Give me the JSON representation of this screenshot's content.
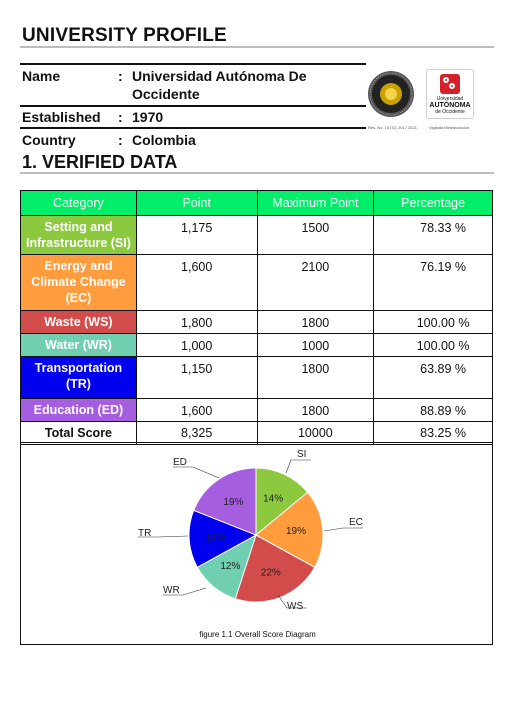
{
  "header": {
    "title": "UNIVERSITY PROFILE"
  },
  "profile": {
    "name_label": "Name",
    "name_value_line1": "Universidad Autónoma De",
    "name_value_line2": "Occidente",
    "established_label": "Established",
    "established_value": "1970",
    "country_label": "Country",
    "country_value": "Colombia",
    "colon": ":"
  },
  "logos": {
    "seal_caption": "Res. No. 16743, 2017 2021",
    "logo_line1": "Universidad",
    "logo_line2": "AUTÓNOMA",
    "logo_line3": "de Occidente",
    "logo_caption": "Vigilada Mineducación"
  },
  "section": {
    "title": "1. VERIFIED DATA"
  },
  "table": {
    "headers": [
      "Category",
      "Point",
      "Maximum Point",
      "Percentage"
    ],
    "header_color": "#00ee6a",
    "rows": [
      {
        "category": "Setting and Infrastructure (SI)",
        "point": "1,175",
        "max": "1500",
        "pct": "78.33 %",
        "color": "#8cc93e"
      },
      {
        "category": "Energy and Climate Change (EC)",
        "point": "1,600",
        "max": "2100",
        "pct": "76.19 %",
        "color": "#ff9c3d"
      },
      {
        "category": "Waste (WS)",
        "point": "1,800",
        "max": "1800",
        "pct": "100.00 %",
        "color": "#d24c4b"
      },
      {
        "category": "Water (WR)",
        "point": "1,000",
        "max": "1000",
        "pct": "100.00 %",
        "color": "#6fcfb0"
      },
      {
        "category": "Transportation (TR)",
        "point": "1,150",
        "max": "1800",
        "pct": "63.89 %",
        "color": "#0000ee"
      },
      {
        "category": "Education (ED)",
        "point": "1,600",
        "max": "1800",
        "pct": "88.89 %",
        "color": "#a55ee0"
      }
    ],
    "total": {
      "label": "Total Score",
      "point": "8,325",
      "max": "10000",
      "pct": "83.25 %"
    }
  },
  "chart_data": {
    "type": "pie",
    "slices": [
      {
        "label": "SI",
        "value": 14,
        "pct_label": "14%",
        "color": "#8cc93e"
      },
      {
        "label": "EC",
        "value": 19,
        "pct_label": "19%",
        "color": "#ff9c3d"
      },
      {
        "label": "WS",
        "value": 22,
        "pct_label": "22%",
        "color": "#d24c4b"
      },
      {
        "label": "WR",
        "value": 12,
        "pct_label": "12%",
        "color": "#6fcfb0"
      },
      {
        "label": "TR",
        "value": 14,
        "pct_label": "14%",
        "color": "#0000ee"
      },
      {
        "label": "ED",
        "value": 19,
        "pct_label": "19%",
        "color": "#a55ee0"
      }
    ],
    "caption": "figure 1.1 Overall Score Diagram"
  }
}
